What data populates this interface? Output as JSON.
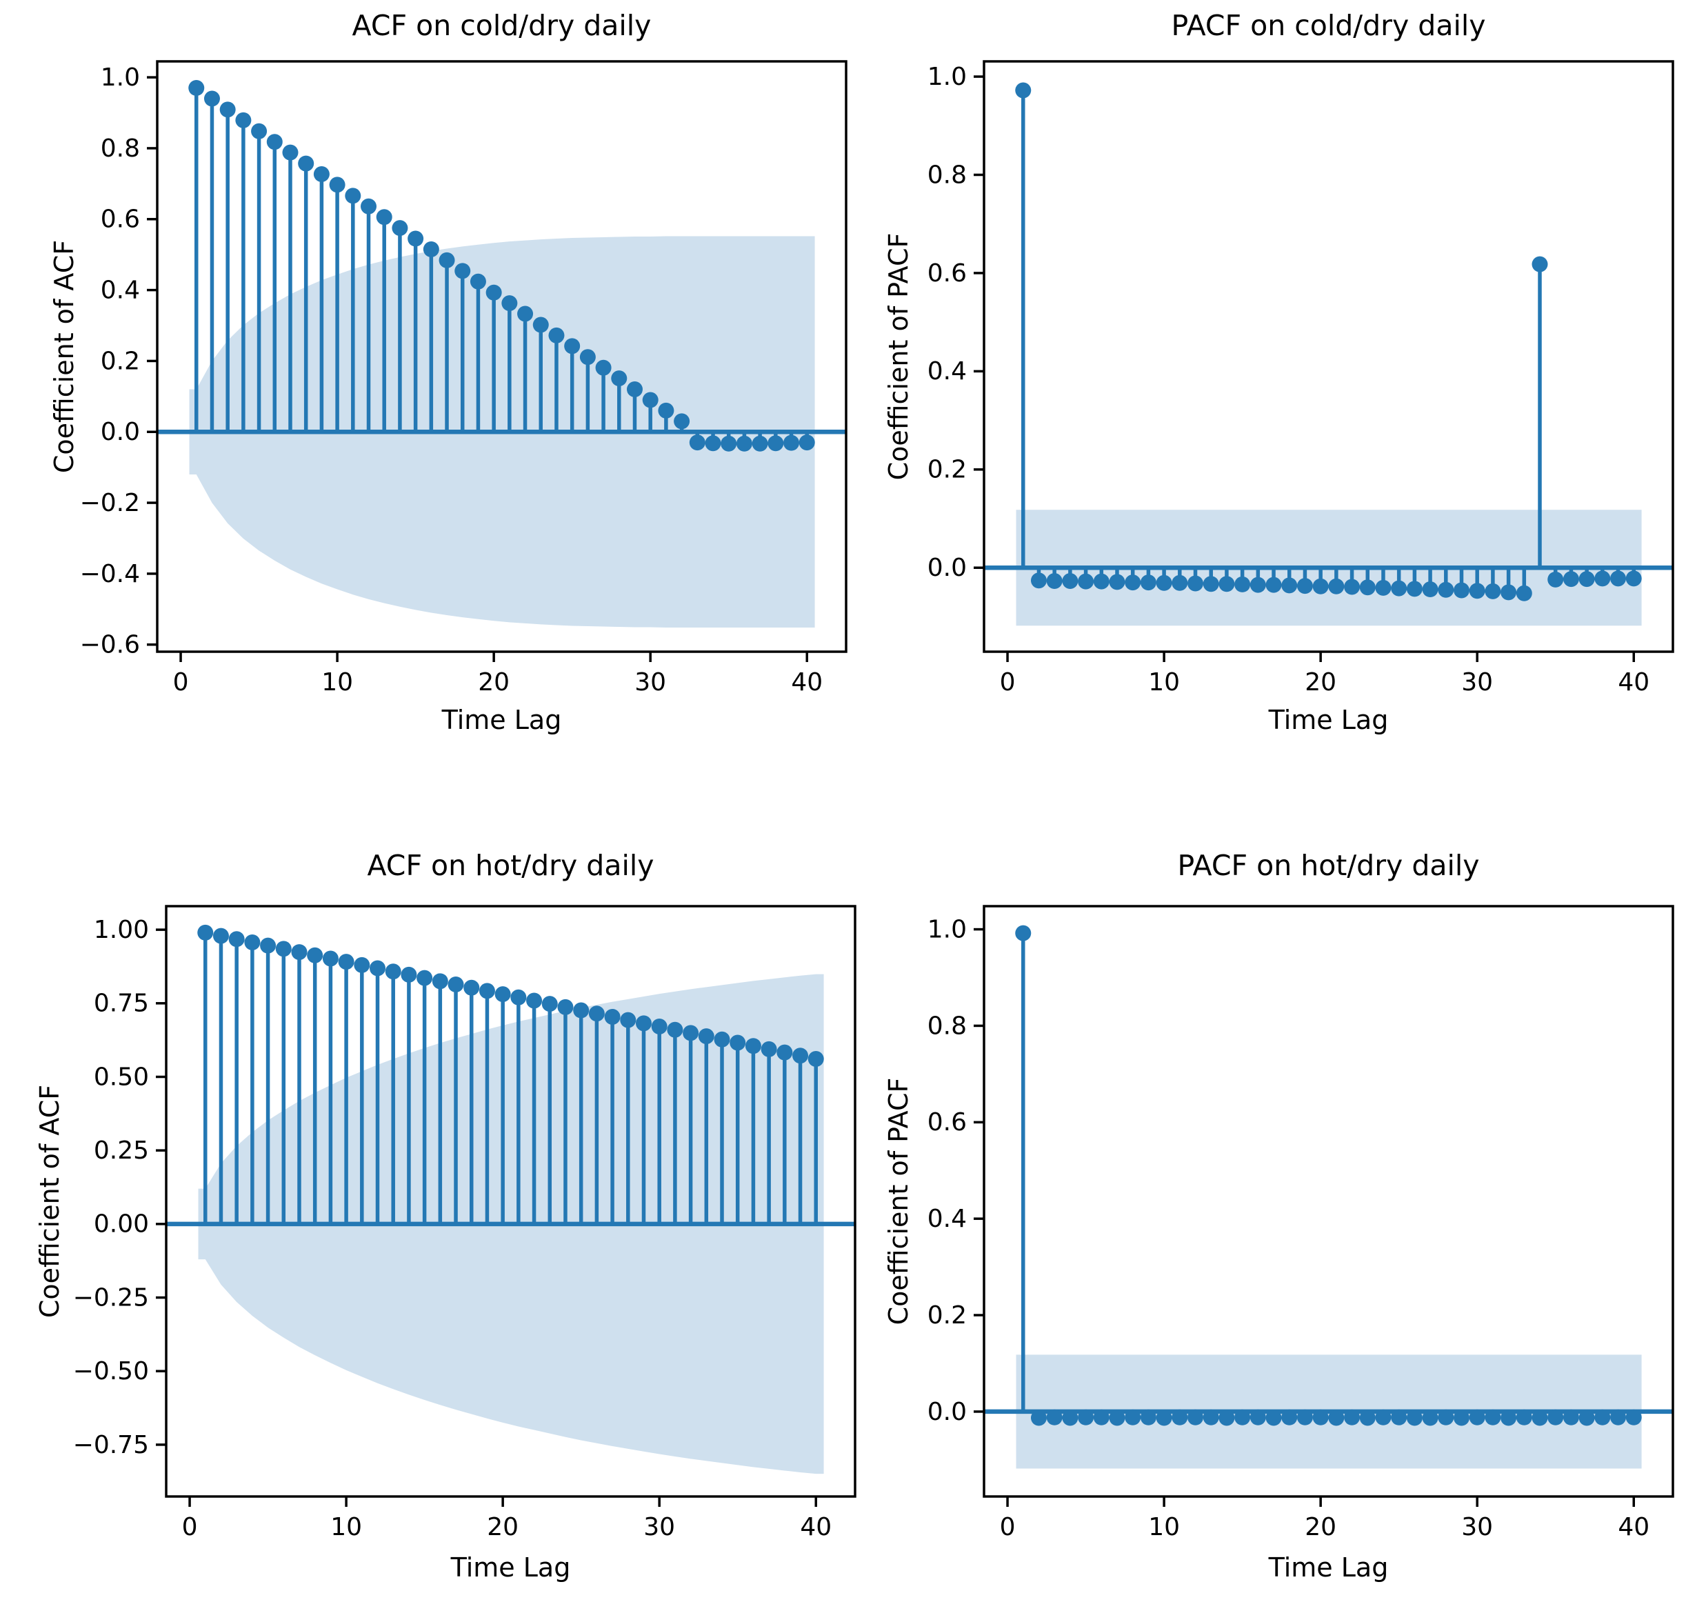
{
  "figure": {
    "background": "#ffffff",
    "stem_color": "#2478b4",
    "band_color": "#cfe0ee",
    "axes_color": "#000000",
    "tick_label_color": "#000000"
  },
  "chart_data": [
    {
      "id": "acf-cold-dry",
      "type": "stem",
      "title": "ACF on cold/dry daily",
      "xlabel": "Time Lag",
      "ylabel": "Coefficient of ACF",
      "legend": null,
      "grid": false,
      "x": [
        1,
        2,
        3,
        4,
        5,
        6,
        7,
        8,
        9,
        10,
        11,
        12,
        13,
        14,
        15,
        16,
        17,
        18,
        19,
        20,
        21,
        22,
        23,
        24,
        25,
        26,
        27,
        28,
        29,
        30,
        31,
        32,
        33,
        34,
        35,
        36,
        37,
        38,
        39,
        40
      ],
      "values": [
        0.97,
        0.94,
        0.909,
        0.879,
        0.848,
        0.818,
        0.788,
        0.757,
        0.727,
        0.697,
        0.666,
        0.636,
        0.606,
        0.575,
        0.545,
        0.515,
        0.484,
        0.454,
        0.424,
        0.393,
        0.363,
        0.333,
        0.302,
        0.272,
        0.242,
        0.211,
        0.181,
        0.151,
        0.12,
        0.09,
        0.06,
        0.03,
        -0.03,
        -0.032,
        -0.033,
        -0.033,
        -0.033,
        -0.032,
        -0.031,
        -0.03
      ],
      "conf_band": {
        "symmetric": true,
        "x_start": 0.55,
        "x_end": 40.5,
        "upper": [
          0.12,
          0.2,
          0.258,
          0.301,
          0.335,
          0.363,
          0.388,
          0.409,
          0.428,
          0.444,
          0.459,
          0.472,
          0.483,
          0.493,
          0.502,
          0.51,
          0.517,
          0.523,
          0.528,
          0.533,
          0.537,
          0.54,
          0.543,
          0.545,
          0.547,
          0.548,
          0.549,
          0.55,
          0.551,
          0.551,
          0.552,
          0.552,
          0.552,
          0.552,
          0.552,
          0.552,
          0.552,
          0.552,
          0.552,
          0.552
        ]
      },
      "xlim": [
        -1.5,
        42.5
      ],
      "ylim": [
        -0.62,
        1.045
      ],
      "xticks": [
        {
          "v": 0,
          "l": "0"
        },
        {
          "v": 10,
          "l": "10"
        },
        {
          "v": 20,
          "l": "20"
        },
        {
          "v": 30,
          "l": "30"
        },
        {
          "v": 40,
          "l": "40"
        }
      ],
      "yticks": [
        {
          "v": 1.0,
          "l": "1.0"
        },
        {
          "v": 0.8,
          "l": "0.8"
        },
        {
          "v": 0.6,
          "l": "0.6"
        },
        {
          "v": 0.4,
          "l": "0.4"
        },
        {
          "v": 0.2,
          "l": "0.2"
        },
        {
          "v": 0.0,
          "l": "0.0"
        },
        {
          "v": -0.2,
          "l": "−0.2"
        },
        {
          "v": -0.4,
          "l": "−0.4"
        },
        {
          "v": -0.6,
          "l": "−0.6"
        }
      ]
    },
    {
      "id": "pacf-cold-dry",
      "type": "stem",
      "title": "PACF on cold/dry daily",
      "xlabel": "Time Lag",
      "ylabel": "Coefficient of PACF",
      "legend": null,
      "grid": false,
      "x": [
        1,
        2,
        3,
        4,
        5,
        6,
        7,
        8,
        9,
        10,
        11,
        12,
        13,
        14,
        15,
        16,
        17,
        18,
        19,
        20,
        21,
        22,
        23,
        24,
        25,
        26,
        27,
        28,
        29,
        30,
        31,
        32,
        33,
        34,
        35,
        36,
        37,
        38,
        39,
        40
      ],
      "values": [
        0.972,
        -0.026,
        -0.027,
        -0.027,
        -0.028,
        -0.028,
        -0.029,
        -0.03,
        -0.03,
        -0.031,
        -0.031,
        -0.032,
        -0.033,
        -0.033,
        -0.034,
        -0.035,
        -0.035,
        -0.036,
        -0.037,
        -0.038,
        -0.038,
        -0.039,
        -0.04,
        -0.041,
        -0.042,
        -0.043,
        -0.044,
        -0.045,
        -0.046,
        -0.047,
        -0.048,
        -0.05,
        -0.052,
        0.618,
        -0.024,
        -0.023,
        -0.023,
        -0.022,
        -0.022,
        -0.022
      ],
      "conf_band": {
        "symmetric": true,
        "x_start": 0.55,
        "x_end": 40.5,
        "upper": [
          0.118,
          0.118,
          0.118,
          0.118,
          0.118,
          0.118,
          0.118,
          0.118,
          0.118,
          0.118,
          0.118,
          0.118,
          0.118,
          0.118,
          0.118,
          0.118,
          0.118,
          0.118,
          0.118,
          0.118,
          0.118,
          0.118,
          0.118,
          0.118,
          0.118,
          0.118,
          0.118,
          0.118,
          0.118,
          0.118,
          0.118,
          0.118,
          0.118,
          0.118,
          0.118,
          0.118,
          0.118,
          0.118,
          0.118,
          0.118
        ]
      },
      "xlim": [
        -1.5,
        42.5
      ],
      "ylim": [
        -0.171,
        1.031
      ],
      "xticks": [
        {
          "v": 0,
          "l": "0"
        },
        {
          "v": 10,
          "l": "10"
        },
        {
          "v": 20,
          "l": "20"
        },
        {
          "v": 30,
          "l": "30"
        },
        {
          "v": 40,
          "l": "40"
        }
      ],
      "yticks": [
        {
          "v": 1.0,
          "l": "1.0"
        },
        {
          "v": 0.8,
          "l": "0.8"
        },
        {
          "v": 0.6,
          "l": "0.6"
        },
        {
          "v": 0.4,
          "l": "0.4"
        },
        {
          "v": 0.2,
          "l": "0.2"
        },
        {
          "v": 0.0,
          "l": "0.0"
        }
      ]
    },
    {
      "id": "acf-hot-dry",
      "type": "stem",
      "title": "ACF on hot/dry daily",
      "xlabel": "Time Lag",
      "ylabel": "Coefficient of ACF",
      "legend": null,
      "grid": false,
      "x": [
        1,
        2,
        3,
        4,
        5,
        6,
        7,
        8,
        9,
        10,
        11,
        12,
        13,
        14,
        15,
        16,
        17,
        18,
        19,
        20,
        21,
        22,
        23,
        24,
        25,
        26,
        27,
        28,
        29,
        30,
        31,
        32,
        33,
        34,
        35,
        36,
        37,
        38,
        39,
        40
      ],
      "values": [
        0.99,
        0.979,
        0.968,
        0.957,
        0.946,
        0.935,
        0.924,
        0.913,
        0.902,
        0.891,
        0.88,
        0.869,
        0.858,
        0.847,
        0.836,
        0.825,
        0.814,
        0.803,
        0.792,
        0.781,
        0.77,
        0.759,
        0.748,
        0.737,
        0.726,
        0.715,
        0.704,
        0.693,
        0.682,
        0.671,
        0.66,
        0.649,
        0.638,
        0.627,
        0.616,
        0.605,
        0.594,
        0.583,
        0.572,
        0.561
      ],
      "conf_band": {
        "symmetric": true,
        "x_start": 0.55,
        "x_end": 40.5,
        "upper": [
          0.12,
          0.206,
          0.265,
          0.312,
          0.352,
          0.386,
          0.418,
          0.446,
          0.472,
          0.497,
          0.519,
          0.541,
          0.561,
          0.58,
          0.598,
          0.615,
          0.631,
          0.646,
          0.661,
          0.675,
          0.688,
          0.7,
          0.712,
          0.724,
          0.735,
          0.745,
          0.755,
          0.764,
          0.773,
          0.782,
          0.79,
          0.798,
          0.805,
          0.812,
          0.819,
          0.826,
          0.832,
          0.838,
          0.844,
          0.849
        ]
      },
      "xlim": [
        -1.5,
        42.5
      ],
      "ylim": [
        -0.926,
        1.08
      ],
      "xticks": [
        {
          "v": 0,
          "l": "0"
        },
        {
          "v": 10,
          "l": "10"
        },
        {
          "v": 20,
          "l": "20"
        },
        {
          "v": 30,
          "l": "30"
        },
        {
          "v": 40,
          "l": "40"
        }
      ],
      "yticks": [
        {
          "v": 1.0,
          "l": "1.00"
        },
        {
          "v": 0.75,
          "l": "0.75"
        },
        {
          "v": 0.5,
          "l": "0.50"
        },
        {
          "v": 0.25,
          "l": "0.25"
        },
        {
          "v": 0.0,
          "l": "0.00"
        },
        {
          "v": -0.25,
          "l": "−0.25"
        },
        {
          "v": -0.5,
          "l": "−0.50"
        },
        {
          "v": -0.75,
          "l": "−0.75"
        }
      ]
    },
    {
      "id": "pacf-hot-dry",
      "type": "stem",
      "title": "PACF on hot/dry daily",
      "xlabel": "Time Lag",
      "ylabel": "Coefficient of PACF",
      "legend": null,
      "grid": false,
      "x": [
        1,
        2,
        3,
        4,
        5,
        6,
        7,
        8,
        9,
        10,
        11,
        12,
        13,
        14,
        15,
        16,
        17,
        18,
        19,
        20,
        21,
        22,
        23,
        24,
        25,
        26,
        27,
        28,
        29,
        30,
        31,
        32,
        33,
        34,
        35,
        36,
        37,
        38,
        39,
        40
      ],
      "values": [
        0.992,
        -0.013,
        -0.012,
        -0.013,
        -0.012,
        -0.012,
        -0.013,
        -0.012,
        -0.012,
        -0.013,
        -0.012,
        -0.012,
        -0.012,
        -0.013,
        -0.012,
        -0.012,
        -0.013,
        -0.012,
        -0.012,
        -0.012,
        -0.013,
        -0.012,
        -0.013,
        -0.012,
        -0.012,
        -0.013,
        -0.013,
        -0.012,
        -0.013,
        -0.012,
        -0.012,
        -0.013,
        -0.012,
        -0.013,
        -0.012,
        -0.012,
        -0.013,
        -0.012,
        -0.012,
        -0.012
      ],
      "conf_band": {
        "symmetric": true,
        "x_start": 0.55,
        "x_end": 40.5,
        "upper": [
          0.118,
          0.118,
          0.118,
          0.118,
          0.118,
          0.118,
          0.118,
          0.118,
          0.118,
          0.118,
          0.118,
          0.118,
          0.118,
          0.118,
          0.118,
          0.118,
          0.118,
          0.118,
          0.118,
          0.118,
          0.118,
          0.118,
          0.118,
          0.118,
          0.118,
          0.118,
          0.118,
          0.118,
          0.118,
          0.118,
          0.118,
          0.118,
          0.118,
          0.118,
          0.118,
          0.118,
          0.118,
          0.118,
          0.118,
          0.118
        ]
      },
      "xlim": [
        -1.5,
        42.5
      ],
      "ylim": [
        -0.176,
        1.048
      ],
      "xticks": [
        {
          "v": 0,
          "l": "0"
        },
        {
          "v": 10,
          "l": "10"
        },
        {
          "v": 20,
          "l": "20"
        },
        {
          "v": 30,
          "l": "30"
        },
        {
          "v": 40,
          "l": "40"
        }
      ],
      "yticks": [
        {
          "v": 1.0,
          "l": "1.0"
        },
        {
          "v": 0.8,
          "l": "0.8"
        },
        {
          "v": 0.6,
          "l": "0.6"
        },
        {
          "v": 0.4,
          "l": "0.4"
        },
        {
          "v": 0.2,
          "l": "0.2"
        },
        {
          "v": 0.0,
          "l": "0.0"
        }
      ]
    }
  ]
}
